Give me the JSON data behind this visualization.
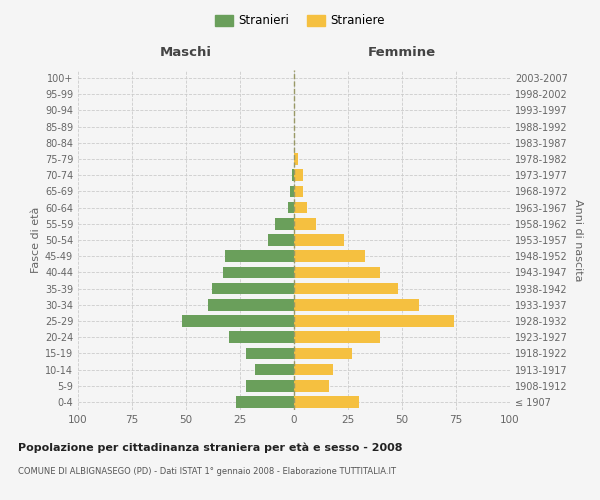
{
  "age_groups": [
    "100+",
    "95-99",
    "90-94",
    "85-89",
    "80-84",
    "75-79",
    "70-74",
    "65-69",
    "60-64",
    "55-59",
    "50-54",
    "45-49",
    "40-44",
    "35-39",
    "30-34",
    "25-29",
    "20-24",
    "15-19",
    "10-14",
    "5-9",
    "0-4"
  ],
  "birth_years": [
    "≤ 1907",
    "1908-1912",
    "1913-1917",
    "1918-1922",
    "1923-1927",
    "1928-1932",
    "1933-1937",
    "1938-1942",
    "1943-1947",
    "1948-1952",
    "1953-1957",
    "1958-1962",
    "1963-1967",
    "1968-1972",
    "1973-1977",
    "1978-1982",
    "1983-1987",
    "1988-1992",
    "1993-1997",
    "1998-2002",
    "2003-2007"
  ],
  "males": [
    0,
    0,
    0,
    0,
    0,
    0,
    1,
    2,
    3,
    9,
    12,
    32,
    33,
    38,
    40,
    52,
    30,
    22,
    18,
    22,
    27
  ],
  "females": [
    0,
    0,
    0,
    0,
    0,
    2,
    4,
    4,
    6,
    10,
    23,
    33,
    40,
    48,
    58,
    74,
    40,
    27,
    18,
    16,
    30
  ],
  "male_color": "#6a9f5b",
  "female_color": "#f5c040",
  "background_color": "#f5f5f5",
  "grid_color": "#cccccc",
  "center_line_color": "#999966",
  "title": "Popolazione per cittadinanza straniera per età e sesso - 2008",
  "subtitle": "COMUNE DI ALBIGNASEGO (PD) - Dati ISTAT 1° gennaio 2008 - Elaborazione TUTTITALIA.IT",
  "xlabel_left": "Maschi",
  "xlabel_right": "Femmine",
  "ylabel_left": "Fasce di età",
  "ylabel_right": "Anni di nascita",
  "legend_stranieri": "Stranieri",
  "legend_straniere": "Straniere",
  "xlim": 100
}
